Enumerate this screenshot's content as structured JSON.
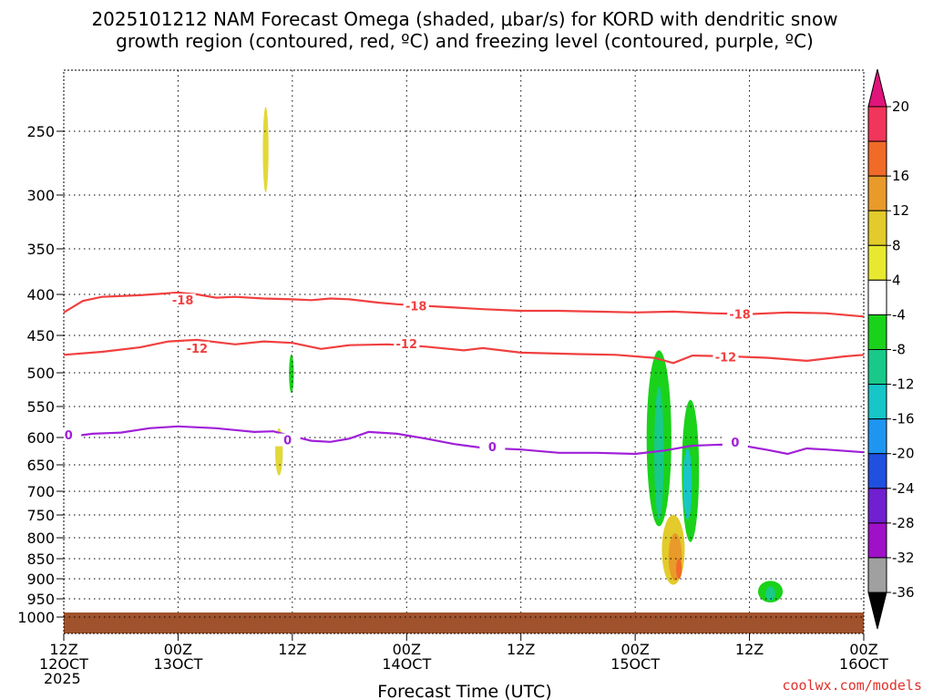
{
  "chart_data": {
    "type": "contour",
    "title_line1": "2025101212 NAM Forecast Omega (shaded, μbar/s) for KORD with dendritic snow",
    "title_line2": "growth region (contoured, red, ºC) and freezing level (contoured, purple, ºC)",
    "xlabel": "Forecast Time (UTC)",
    "credit": "coolwx.com/models",
    "x_ticks": [
      {
        "l1": "12Z",
        "l2": "12OCT",
        "l3": "2025"
      },
      {
        "l1": "00Z",
        "l2": "13OCT",
        "l3": ""
      },
      {
        "l1": "12Z",
        "l2": "",
        "l3": ""
      },
      {
        "l1": "00Z",
        "l2": "14OCT",
        "l3": ""
      },
      {
        "l1": "12Z",
        "l2": "",
        "l3": ""
      },
      {
        "l1": "00Z",
        "l2": "15OCT",
        "l3": ""
      },
      {
        "l1": "12Z",
        "l2": "",
        "l3": ""
      },
      {
        "l1": "00Z",
        "l2": "16OCT",
        "l3": ""
      }
    ],
    "x_range_hours": [
      0,
      84
    ],
    "y_ticks": [
      "250",
      "300",
      "350",
      "400",
      "450",
      "500",
      "550",
      "600",
      "650",
      "700",
      "750",
      "800",
      "850",
      "900",
      "950",
      "1000"
    ],
    "y_values": [
      250,
      300,
      350,
      400,
      450,
      500,
      550,
      600,
      650,
      700,
      750,
      800,
      850,
      900,
      950,
      1000
    ],
    "colorbar": {
      "labels": [
        "20",
        "16",
        "12",
        "8",
        "4",
        "-4",
        "-8",
        "-12",
        "-16",
        "-20",
        "-24",
        "-28",
        "-32",
        "-36"
      ],
      "colors": [
        "#f0365a",
        "#f06a28",
        "#e89a2a",
        "#e2cb2a",
        "#e8e830",
        "#ffffff",
        "#1ad21a",
        "#18c98a",
        "#16c6c8",
        "#1e96f0",
        "#2050e0",
        "#7020d0",
        "#a010c8",
        "#a0a0a0"
      ],
      "top_color": "#e0147a",
      "bottom_color": "#000000"
    },
    "contours": [
      {
        "name": "-18",
        "color": "#f04040",
        "points": [
          [
            0,
            422
          ],
          [
            2,
            408
          ],
          [
            4,
            403
          ],
          [
            8,
            401
          ],
          [
            12,
            398
          ],
          [
            14,
            400
          ],
          [
            16,
            404
          ],
          [
            18,
            403
          ],
          [
            21,
            405
          ],
          [
            24,
            406
          ],
          [
            26,
            407
          ],
          [
            28,
            405
          ],
          [
            30,
            406
          ],
          [
            33,
            410
          ],
          [
            35,
            412
          ],
          [
            38,
            414
          ],
          [
            41,
            416
          ],
          [
            44,
            418
          ],
          [
            48,
            420
          ],
          [
            52,
            420
          ],
          [
            56,
            421
          ],
          [
            60,
            422
          ],
          [
            64,
            421
          ],
          [
            68,
            423
          ],
          [
            72,
            424
          ],
          [
            76,
            422
          ],
          [
            80,
            423
          ],
          [
            84,
            427
          ]
        ],
        "labels": [
          [
            12.5,
            408
          ],
          [
            37,
            415
          ],
          [
            71,
            425
          ]
        ]
      },
      {
        "name": "-12",
        "color": "#f04040",
        "points": [
          [
            0,
            476
          ],
          [
            4,
            472
          ],
          [
            8,
            466
          ],
          [
            11,
            458
          ],
          [
            14,
            456
          ],
          [
            18,
            462
          ],
          [
            21,
            458
          ],
          [
            24,
            460
          ],
          [
            27,
            468
          ],
          [
            30,
            463
          ],
          [
            34,
            462
          ],
          [
            38,
            465
          ],
          [
            42,
            470
          ],
          [
            44,
            467
          ],
          [
            48,
            473
          ],
          [
            54,
            475
          ],
          [
            58,
            476
          ],
          [
            62,
            480
          ],
          [
            64,
            487
          ],
          [
            66,
            477
          ],
          [
            70,
            478
          ],
          [
            74,
            480
          ],
          [
            78,
            484
          ],
          [
            82,
            478
          ],
          [
            84,
            476
          ]
        ],
        "labels": [
          [
            14,
            468
          ],
          [
            36,
            462
          ],
          [
            69.5,
            480
          ]
        ]
      },
      {
        "name": "0",
        "color": "#a020d8",
        "points": [
          [
            0,
            600
          ],
          [
            3,
            594
          ],
          [
            6,
            592
          ],
          [
            9,
            585
          ],
          [
            12,
            582
          ],
          [
            16,
            585
          ],
          [
            20,
            591
          ],
          [
            22,
            590
          ],
          [
            24,
            598
          ],
          [
            26,
            606
          ],
          [
            28,
            608
          ],
          [
            30,
            602
          ],
          [
            32,
            591
          ],
          [
            35,
            594
          ],
          [
            38,
            602
          ],
          [
            41,
            612
          ],
          [
            44,
            619
          ],
          [
            48,
            622
          ],
          [
            52,
            628
          ],
          [
            56,
            628
          ],
          [
            60,
            630
          ],
          [
            63,
            624
          ],
          [
            66,
            615
          ],
          [
            69,
            613
          ],
          [
            71,
            614
          ],
          [
            74,
            623
          ],
          [
            76,
            630
          ],
          [
            78,
            620
          ],
          [
            80,
            622
          ],
          [
            84,
            627
          ]
        ],
        "labels": [
          [
            0.5,
            597
          ],
          [
            23.5,
            606
          ],
          [
            45,
            618
          ],
          [
            70.5,
            610
          ]
        ]
      }
    ],
    "shaded_regions": [
      {
        "name": "upward-yellow-300",
        "color": "#e2d83a",
        "cx": 21.2,
        "y_top": 230,
        "y_bot": 298,
        "half_width": 0.3
      },
      {
        "name": "upward-yellow-620",
        "color": "#e2d83a",
        "cx": 22.6,
        "y_top": 585,
        "y_bot": 670,
        "half_width": 0.4
      },
      {
        "name": "down-green-500",
        "color": "#1ad21a",
        "cx": 23.9,
        "y_top": 475,
        "y_bot": 530,
        "half_width": 0.25
      },
      {
        "name": "down-green-east-a",
        "color": "#1ad21a",
        "cx": 62.5,
        "y_top": 470,
        "y_bot": 775,
        "half_width": 1.3
      },
      {
        "name": "down-green-east-b",
        "color": "#1ad21a",
        "cx": 65.8,
        "y_top": 540,
        "y_bot": 810,
        "half_width": 0.9
      },
      {
        "name": "down-teal-east-a",
        "color": "#18c98a",
        "cx": 62.5,
        "y_top": 520,
        "y_bot": 760,
        "half_width": 0.5
      },
      {
        "name": "down-teal-east-b",
        "color": "#16c6c8",
        "cx": 65.5,
        "y_top": 620,
        "y_bot": 760,
        "half_width": 0.45
      },
      {
        "name": "up-orange-east",
        "color": "#e2cb2a",
        "cx": 64.0,
        "y_top": 750,
        "y_bot": 915,
        "half_width": 1.2
      },
      {
        "name": "up-orange-east-core",
        "color": "#e89a2a",
        "cx": 64.2,
        "y_top": 790,
        "y_bot": 905,
        "half_width": 0.7
      },
      {
        "name": "up-red-east-core",
        "color": "#f06a28",
        "cx": 64.6,
        "y_top": 850,
        "y_bot": 900,
        "half_width": 0.3
      },
      {
        "name": "down-green-950",
        "color": "#1ad21a",
        "cx": 74.2,
        "y_top": 905,
        "y_bot": 960,
        "half_width": 1.3
      },
      {
        "name": "down-teal-950",
        "color": "#18c98a",
        "cx": 74.2,
        "y_top": 920,
        "y_bot": 955,
        "half_width": 0.5
      }
    ],
    "surface_color": "#a0522d"
  }
}
